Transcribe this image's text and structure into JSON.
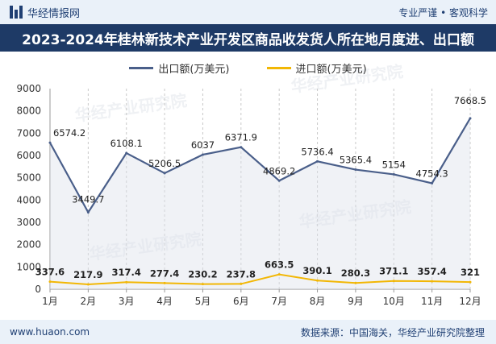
{
  "header": {
    "brand": "华经情报网",
    "tagline": "专业严谨 • 客观科学"
  },
  "footer": {
    "url": "www.huaon.com",
    "source": "数据来源：中国海关，华经产业研究院整理"
  },
  "watermark": "华经产业研究院",
  "colors": {
    "export": "#4a5f8a",
    "import": "#f2b705",
    "title_bg": "#1e3a66",
    "bar_bg": "#eaf1f9"
  },
  "chart_data": {
    "type": "line",
    "title": "2023-2024年桂林新技术产业开发区商品收发货人所在地月度进、出口额",
    "categories": [
      "1月",
      "2月",
      "3月",
      "4月",
      "5月",
      "6月",
      "7月",
      "8月",
      "9月",
      "10月",
      "11月",
      "12月"
    ],
    "ylim": [
      0,
      9000
    ],
    "yticks": [
      0,
      1000,
      2000,
      3000,
      4000,
      5000,
      6000,
      7000,
      8000,
      9000
    ],
    "grid": "vertical",
    "legend_position": "top",
    "series": [
      {
        "name": "出口额(万美元)",
        "values": [
          6574.2,
          3449.7,
          6108.1,
          5206.5,
          6037,
          6371.9,
          4869.2,
          5736.4,
          5365.4,
          5154,
          4754.3,
          7668.5
        ],
        "labels": [
          "6574.2",
          "3449.7",
          "6108.1",
          "5206.5",
          "6037",
          "6371.9",
          "4869.2",
          "5736.4",
          "5365.4",
          "5154",
          "4754.3",
          "7668.5"
        ]
      },
      {
        "name": "进口额(万美元)",
        "values": [
          337.6,
          217.9,
          317.4,
          277.4,
          230.2,
          237.8,
          663.5,
          390.1,
          280.3,
          371.1,
          357.4,
          321
        ],
        "labels": [
          "337.6",
          "217.9",
          "317.4",
          "277.4",
          "230.2",
          "237.8",
          "663.5",
          "390.1",
          "280.3",
          "371.1",
          "357.4",
          "321"
        ]
      }
    ]
  }
}
